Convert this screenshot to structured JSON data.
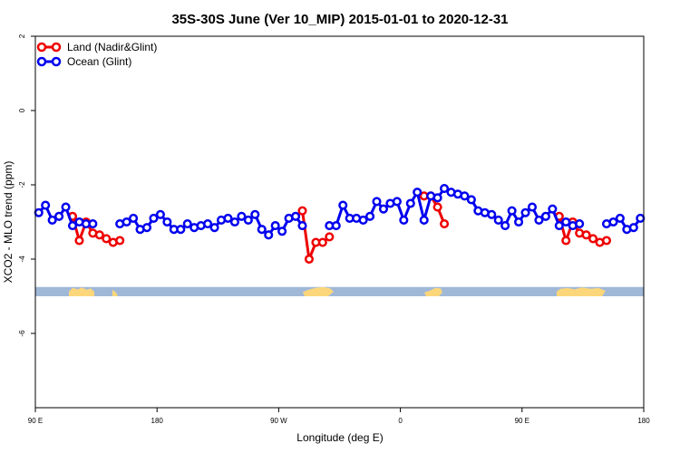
{
  "chart_data": {
    "type": "line",
    "title": "35S-30S June (Ver 10_MIP)   2015-01-01 to 2020-12-31",
    "xlabel": "Longitude (deg E)",
    "ylabel": "XCO2 - MLO trend (ppm)",
    "xlim": [
      90,
      540
    ],
    "ylim": [
      -8,
      2
    ],
    "x_ticks": [
      {
        "value": 90,
        "label": "90 E"
      },
      {
        "value": 180,
        "label": "180"
      },
      {
        "value": 270,
        "label": "90 W"
      },
      {
        "value": 360,
        "label": "0"
      },
      {
        "value": 450,
        "label": "90 E"
      },
      {
        "value": 540,
        "label": "180"
      }
    ],
    "y_ticks": [
      {
        "value": 2,
        "label": "2"
      },
      {
        "value": 0,
        "label": "0"
      },
      {
        "value": -2,
        "label": "-2"
      },
      {
        "value": -4,
        "label": "-4"
      },
      {
        "value": -6,
        "label": "-6"
      }
    ],
    "legend_position": "top-left",
    "land_band": {
      "y_top": -4.75,
      "y_bottom": -5.0
    },
    "series": [
      {
        "name": "Land (Nadir&Glint)",
        "color": "#ee0000",
        "segments": [
          [
            [
              117.5,
              -2.85
            ],
            [
              122.5,
              -3.5
            ],
            [
              127.5,
              -3.0
            ],
            [
              132.5,
              -3.3
            ],
            [
              137.5,
              -3.35
            ],
            [
              142.5,
              -3.45
            ],
            [
              147.5,
              -3.55
            ],
            [
              152.5,
              -3.5
            ]
          ],
          [
            [
              287.5,
              -2.7
            ],
            [
              292.5,
              -4.0
            ],
            [
              297.5,
              -3.55
            ],
            [
              302.5,
              -3.55
            ],
            [
              307.5,
              -3.4
            ]
          ],
          [
            [
              377.5,
              -2.3
            ],
            [
              382.5,
              -2.3
            ],
            [
              387.5,
              -2.6
            ],
            [
              392.5,
              -3.05
            ]
          ],
          [
            [
              477.5,
              -2.85
            ],
            [
              482.5,
              -3.5
            ],
            [
              487.5,
              -3.0
            ],
            [
              492.5,
              -3.3
            ],
            [
              497.5,
              -3.35
            ],
            [
              502.5,
              -3.45
            ],
            [
              507.5,
              -3.55
            ],
            [
              512.5,
              -3.5
            ]
          ]
        ]
      },
      {
        "name": "Ocean (Glint)",
        "color": "#0000ee",
        "segments": [
          [
            [
              92.5,
              -2.75
            ],
            [
              97.5,
              -2.55
            ],
            [
              102.5,
              -2.95
            ],
            [
              107.5,
              -2.85
            ],
            [
              112.5,
              -2.6
            ],
            [
              117.5,
              -3.1
            ],
            [
              122.5,
              -3.0
            ],
            [
              127.5,
              -3.05
            ],
            [
              132.5,
              -3.05
            ]
          ],
          [
            [
              152.5,
              -3.05
            ],
            [
              157.5,
              -3.0
            ],
            [
              162.5,
              -2.9
            ],
            [
              167.5,
              -3.2
            ],
            [
              172.5,
              -3.15
            ],
            [
              177.5,
              -2.9
            ],
            [
              182.5,
              -2.8
            ],
            [
              187.5,
              -3.0
            ],
            [
              192.5,
              -3.2
            ],
            [
              197.5,
              -3.2
            ],
            [
              202.5,
              -3.05
            ],
            [
              207.5,
              -3.15
            ],
            [
              212.5,
              -3.1
            ],
            [
              217.5,
              -3.05
            ],
            [
              222.5,
              -3.15
            ],
            [
              227.5,
              -2.95
            ],
            [
              232.5,
              -2.9
            ],
            [
              237.5,
              -3.0
            ],
            [
              242.5,
              -2.85
            ],
            [
              247.5,
              -2.95
            ],
            [
              252.5,
              -2.8
            ],
            [
              257.5,
              -3.2
            ],
            [
              262.5,
              -3.35
            ],
            [
              267.5,
              -3.1
            ],
            [
              272.5,
              -3.25
            ],
            [
              277.5,
              -2.9
            ],
            [
              282.5,
              -2.85
            ],
            [
              287.5,
              -3.1
            ]
          ],
          [
            [
              307.5,
              -3.1
            ],
            [
              312.5,
              -3.1
            ],
            [
              317.5,
              -2.55
            ],
            [
              322.5,
              -2.9
            ],
            [
              327.5,
              -2.9
            ],
            [
              332.5,
              -2.95
            ],
            [
              337.5,
              -2.85
            ],
            [
              342.5,
              -2.45
            ],
            [
              347.5,
              -2.65
            ],
            [
              352.5,
              -2.5
            ],
            [
              357.5,
              -2.45
            ],
            [
              362.5,
              -2.95
            ],
            [
              367.5,
              -2.5
            ],
            [
              372.5,
              -2.2
            ],
            [
              377.5,
              -2.95
            ],
            [
              382.5,
              -2.3
            ],
            [
              387.5,
              -2.35
            ],
            [
              392.5,
              -2.1
            ],
            [
              397.5,
              -2.2
            ],
            [
              402.5,
              -2.25
            ],
            [
              407.5,
              -2.3
            ],
            [
              412.5,
              -2.4
            ],
            [
              417.5,
              -2.7
            ],
            [
              422.5,
              -2.75
            ],
            [
              427.5,
              -2.8
            ],
            [
              432.5,
              -2.95
            ],
            [
              437.5,
              -3.1
            ],
            [
              442.5,
              -2.7
            ],
            [
              447.5,
              -3.0
            ],
            [
              452.5,
              -2.75
            ],
            [
              457.5,
              -2.6
            ],
            [
              462.5,
              -2.95
            ],
            [
              467.5,
              -2.85
            ],
            [
              472.5,
              -2.65
            ],
            [
              477.5,
              -3.1
            ],
            [
              482.5,
              -3.0
            ],
            [
              487.5,
              -3.1
            ],
            [
              492.5,
              -3.05
            ]
          ],
          [
            [
              512.5,
              -3.05
            ],
            [
              517.5,
              -3.0
            ],
            [
              522.5,
              -2.9
            ],
            [
              527.5,
              -3.2
            ],
            [
              532.5,
              -3.15
            ],
            [
              537.5,
              -2.9
            ]
          ]
        ]
      }
    ]
  },
  "colors": {
    "ocean_band": "#a0b8d8",
    "land_band": "#fcd67a"
  }
}
